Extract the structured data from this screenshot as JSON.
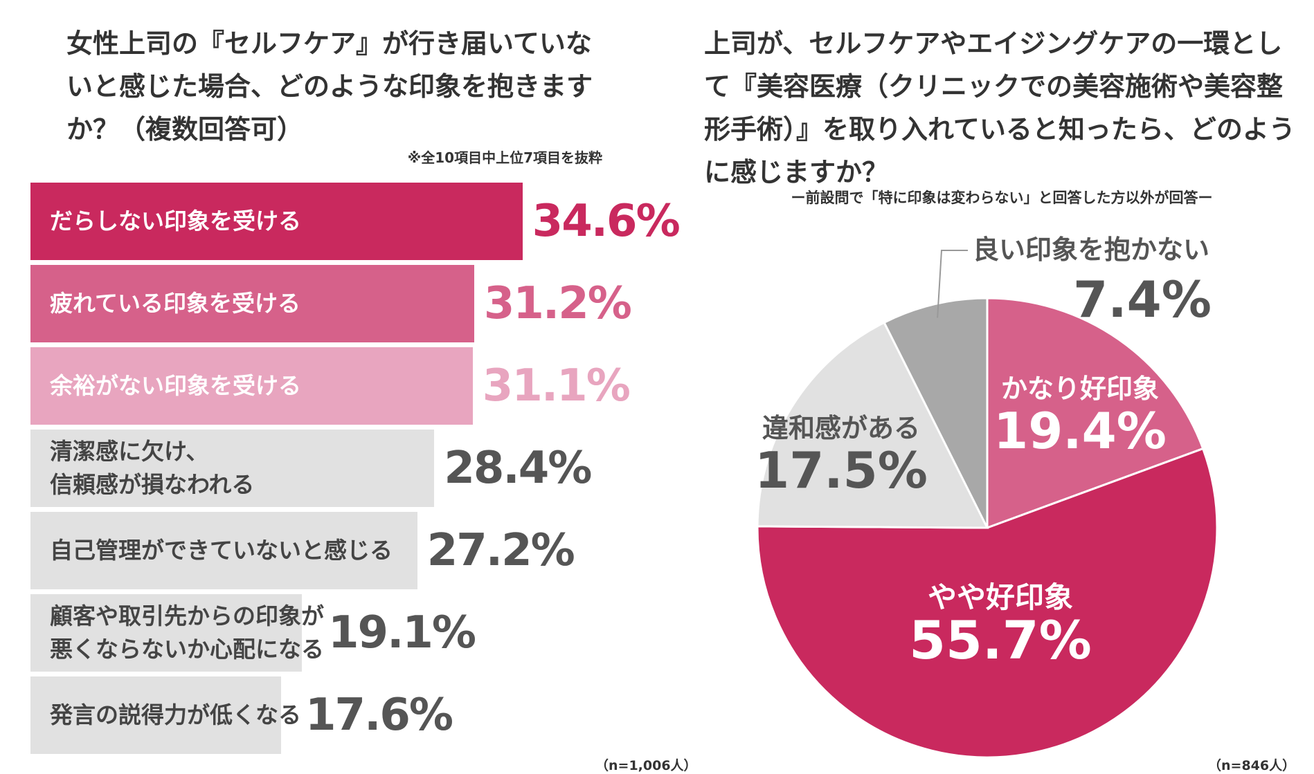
{
  "left": {
    "title": "女性上司の『セルフケア』が行き届いていないと感じた場合、どのような印象を抱きますか？（複数回答可）",
    "note": "※全10項目中上位7項目を抜粋",
    "n": "（n=1,006人）"
  },
  "right": {
    "title": "上司が、セルフケアやエイジングケアの一環として『美容医療（クリニックでの美容施術や美容整形手術）』を取り入れていると知ったら、どのように感じますか？",
    "note": "ー前設問で「特に印象は変わらない」と回答した方以外が回答ー",
    "n": "（n=846人）"
  },
  "chart_data": [
    {
      "type": "bar",
      "orientation": "horizontal",
      "title": "女性上司の『セルフケア』が行き届いていないと感じた場合、どのような印象を抱きますか？（複数回答可）",
      "unit": "%",
      "categories": [
        "だらしない印象を受ける",
        "疲れている印象を受ける",
        "余裕がない印象を受ける",
        "清潔感に欠け、信頼感が損なわれる",
        "自己管理ができていないと感じる",
        "顧客や取引先からの印象が悪くならないか心配になる",
        "発言の説得力が低くなる"
      ],
      "label_lines": [
        [
          "だらしない印象を受ける"
        ],
        [
          "疲れている印象を受ける"
        ],
        [
          "余裕がない印象を受ける"
        ],
        [
          "清潔感に欠け、",
          "信頼感が損なわれる"
        ],
        [
          "自己管理ができていないと感じる"
        ],
        [
          "顧客や取引先からの印象が",
          "悪くならないか心配になる"
        ],
        [
          "発言の説得力が低くなる"
        ]
      ],
      "values": [
        34.6,
        31.2,
        31.1,
        28.4,
        27.2,
        19.1,
        17.6
      ],
      "value_labels": [
        "34.6%",
        "31.2%",
        "31.1%",
        "28.4%",
        "27.2%",
        "19.1%",
        "17.6%"
      ],
      "bar_colors": [
        "#c9295e",
        "#d6618a",
        "#e8a5bf",
        "#e1e1e1",
        "#e1e1e1",
        "#e1e1e1",
        "#e1e1e1"
      ],
      "value_colors": [
        "#c9295e",
        "#d6618a",
        "#e8a5bf",
        "#555555",
        "#555555",
        "#555555",
        "#555555"
      ],
      "label_colors": [
        "#ffffff",
        "#ffffff",
        "#ffffff",
        "#444444",
        "#444444",
        "#444444",
        "#444444"
      ]
    },
    {
      "type": "pie",
      "title": "上司が、セルフケアやエイジングケアの一環として『美容医療（クリニックでの美容施術や美容整形手術）』を取り入れていると知ったら、どのように感じますか？",
      "unit": "%",
      "slices": [
        {
          "label": "かなり好印象",
          "value": 19.4,
          "value_label": "19.4%",
          "color": "#d6618a",
          "text_color": "#ffffff"
        },
        {
          "label": "やや好印象",
          "value": 55.7,
          "value_label": "55.7%",
          "color": "#c9295e",
          "text_color": "#ffffff"
        },
        {
          "label": "違和感がある",
          "value": 17.5,
          "value_label": "17.5%",
          "color": "#e1e1e1",
          "text_color": "#555555"
        },
        {
          "label": "良い印象を抱かない",
          "value": 7.4,
          "value_label": "7.4%",
          "color": "#a8a8a8",
          "text_color": "#555555"
        }
      ]
    }
  ]
}
